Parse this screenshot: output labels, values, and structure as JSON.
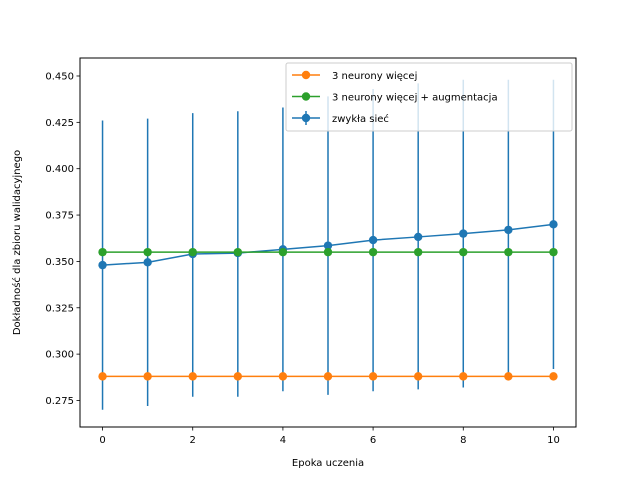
{
  "chart_data": {
    "type": "line",
    "title": "",
    "xlabel": "Epoka uczenia",
    "ylabel": "Dokładność dla zbioru walidacyjnego",
    "xlim": [
      -0.5,
      10.5
    ],
    "ylim": [
      0.2607,
      0.4597
    ],
    "xticks": [
      0,
      2,
      4,
      6,
      8,
      10
    ],
    "xtick_labels": [
      "0",
      "2",
      "4",
      "6",
      "8",
      "10"
    ],
    "yticks": [
      0.275,
      0.3,
      0.325,
      0.35,
      0.375,
      0.4,
      0.425,
      0.45
    ],
    "ytick_labels": [
      "0.275",
      "0.300",
      "0.325",
      "0.350",
      "0.375",
      "0.400",
      "0.425",
      "0.450"
    ],
    "grid": false,
    "legend_position": "top-right",
    "x": [
      0,
      1,
      2,
      3,
      4,
      5,
      6,
      7,
      8,
      9,
      10
    ],
    "series": [
      {
        "name": "3 neurony więcej",
        "color": "#ff7f0e",
        "marker": "circle",
        "values": [
          0.288,
          0.288,
          0.288,
          0.288,
          0.288,
          0.288,
          0.288,
          0.288,
          0.288,
          0.288,
          0.288
        ]
      },
      {
        "name": "3 neurony więcej + augmentacja",
        "color": "#2ca02c",
        "marker": "circle",
        "values": [
          0.355,
          0.355,
          0.355,
          0.355,
          0.355,
          0.355,
          0.355,
          0.355,
          0.355,
          0.355,
          0.355
        ]
      },
      {
        "name": "zwykła sieć",
        "color": "#1f77b4",
        "marker": "circle",
        "values": [
          0.348,
          0.3495,
          0.354,
          0.3545,
          0.3565,
          0.3585,
          0.3615,
          0.3632,
          0.365,
          0.367,
          0.37
        ],
        "error_low": [
          0.27,
          0.272,
          0.277,
          0.277,
          0.28,
          0.278,
          0.28,
          0.281,
          0.282,
          0.287,
          0.292
        ],
        "error_high": [
          0.426,
          0.427,
          0.43,
          0.431,
          0.433,
          0.439,
          0.443,
          0.446,
          0.448,
          0.448,
          0.448
        ]
      }
    ]
  }
}
